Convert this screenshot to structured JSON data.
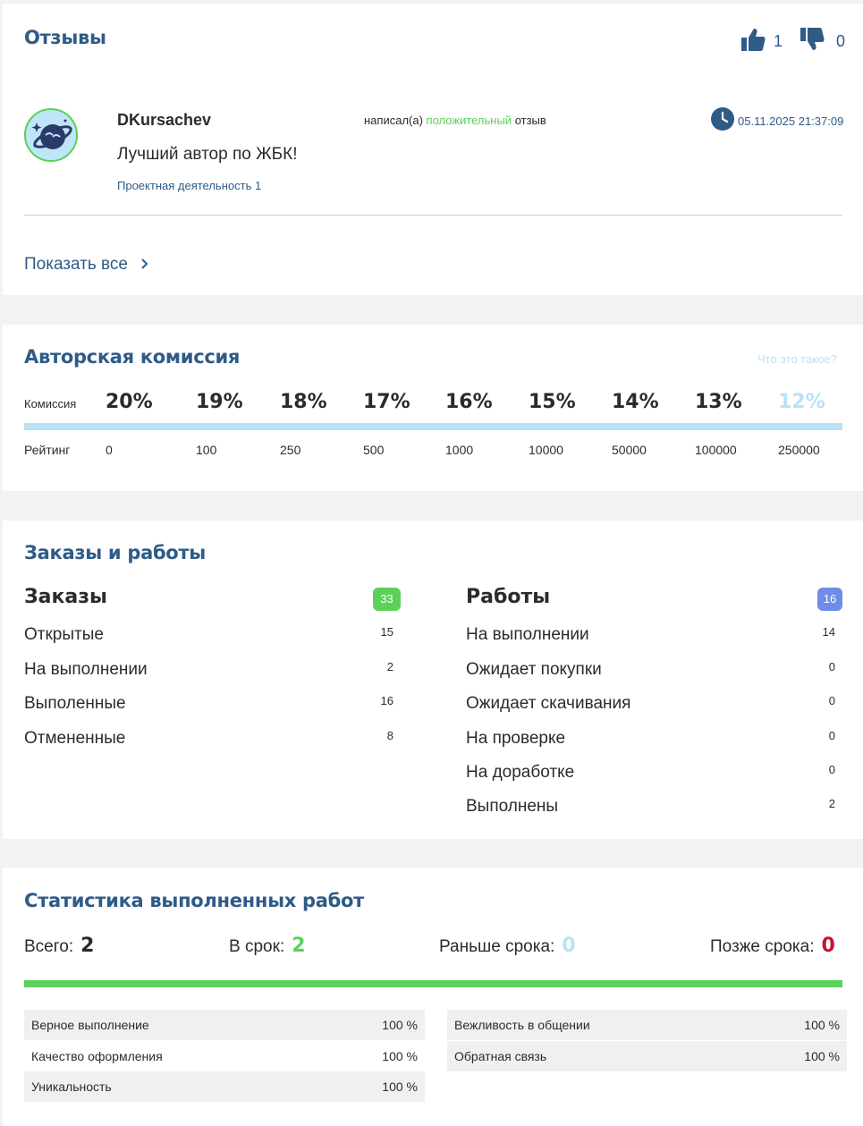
{
  "reviews": {
    "title": "Отзывы",
    "likes": "1",
    "dislikes": "0",
    "review": {
      "author": "DKursachev",
      "wrote_prefix": "написал(а)",
      "wrote_type": "положительный",
      "wrote_suffix": "отзыв",
      "datetime": "05.11.2025 21:37:09",
      "text": "Лучший автор по ЖБК!",
      "subject": "Проектная деятельность 1"
    },
    "show_all": "Показать все"
  },
  "commission": {
    "title": "Авторская комиссия",
    "what_link": "Что это такое?",
    "commission_label": "Комиссия",
    "rating_label": "Рейтинг",
    "percents": [
      "20%",
      "19%",
      "18%",
      "17%",
      "16%",
      "15%",
      "14%",
      "13%",
      "12%"
    ],
    "ratings": [
      "0",
      "100",
      "250",
      "500",
      "1000",
      "10000",
      "50000",
      "100000",
      "250000"
    ]
  },
  "orders_works": {
    "title": "Заказы и работы",
    "orders": {
      "heading": "Заказы",
      "count": "33",
      "rows": [
        {
          "label": "Открытые",
          "value": "15"
        },
        {
          "label": "На выполнении",
          "value": "2"
        },
        {
          "label": "Выполенные",
          "value": "16"
        },
        {
          "label": "Отмененные",
          "value": "8"
        }
      ]
    },
    "works": {
      "heading": "Работы",
      "count": "16",
      "rows": [
        {
          "label": "На выполнении",
          "value": "14"
        },
        {
          "label": "Ожидает покупки",
          "value": "0"
        },
        {
          "label": "Ожидает скачивания",
          "value": "0"
        },
        {
          "label": "На проверке",
          "value": "0"
        },
        {
          "label": "На доработке",
          "value": "0"
        },
        {
          "label": "Выполнены",
          "value": "2"
        }
      ]
    }
  },
  "stats": {
    "title": "Статистика выполненных работ",
    "total_label": "Всего:",
    "total": "2",
    "ontime_label": "В срок:",
    "ontime": "2",
    "early_label": "Раньше срока:",
    "early": "0",
    "late_label": "Позже срока:",
    "late": "0",
    "left": [
      {
        "label": "Верное выполнение",
        "value": "100 %"
      },
      {
        "label": "Качество оформления",
        "value": "100 %"
      },
      {
        "label": "Уникальность",
        "value": "100 %"
      }
    ],
    "right": [
      {
        "label": "Вежливость в общении",
        "value": "100 %"
      },
      {
        "label": "Обратная связь",
        "value": "100 %"
      }
    ]
  },
  "colors": {
    "brand": "#2f5b87",
    "green": "#5bd15b",
    "light_blue": "#b9e2f7",
    "red": "#c8102e",
    "badge_blue": "#6f8de8"
  }
}
